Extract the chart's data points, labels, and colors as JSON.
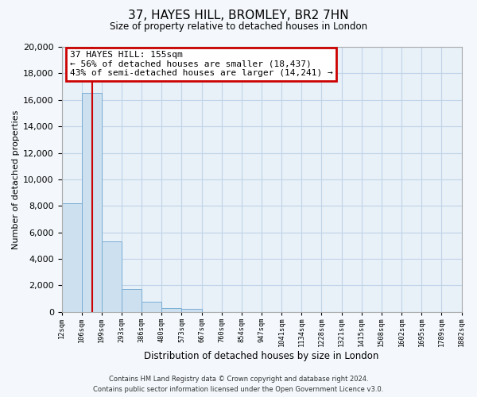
{
  "title": "37, HAYES HILL, BROMLEY, BR2 7HN",
  "subtitle": "Size of property relative to detached houses in London",
  "xlabel": "Distribution of detached houses by size in London",
  "ylabel": "Number of detached properties",
  "bar_values": [
    8200,
    16500,
    5300,
    1750,
    750,
    300,
    200,
    0,
    0,
    0,
    0,
    0,
    0,
    0,
    0,
    0,
    0,
    0,
    0,
    0
  ],
  "bar_labels": [
    "12sqm",
    "106sqm",
    "199sqm",
    "293sqm",
    "386sqm",
    "480sqm",
    "573sqm",
    "667sqm",
    "760sqm",
    "854sqm",
    "947sqm",
    "1041sqm",
    "1134sqm",
    "1228sqm",
    "1321sqm",
    "1415sqm",
    "1508sqm",
    "1602sqm",
    "1695sqm",
    "1789sqm",
    "1882sqm"
  ],
  "bar_color": "#cde0f0",
  "bar_edge_color": "#7aaed4",
  "property_line_color": "#cc0000",
  "annotation_title": "37 HAYES HILL: 155sqm",
  "annotation_line1": "← 56% of detached houses are smaller (18,437)",
  "annotation_line2": "43% of semi-detached houses are larger (14,241) →",
  "annotation_box_color": "#ffffff",
  "annotation_box_edge": "#cc0000",
  "ylim": [
    0,
    20000
  ],
  "yticks": [
    0,
    2000,
    4000,
    6000,
    8000,
    10000,
    12000,
    14000,
    16000,
    18000,
    20000
  ],
  "grid_color": "#c0d4e8",
  "footer_line1": "Contains HM Land Registry data © Crown copyright and database right 2024.",
  "footer_line2": "Contains public sector information licensed under the Open Government Licence v3.0.",
  "plot_bg_color": "#e8f0f8",
  "fig_bg_color": "#f4f8fc"
}
